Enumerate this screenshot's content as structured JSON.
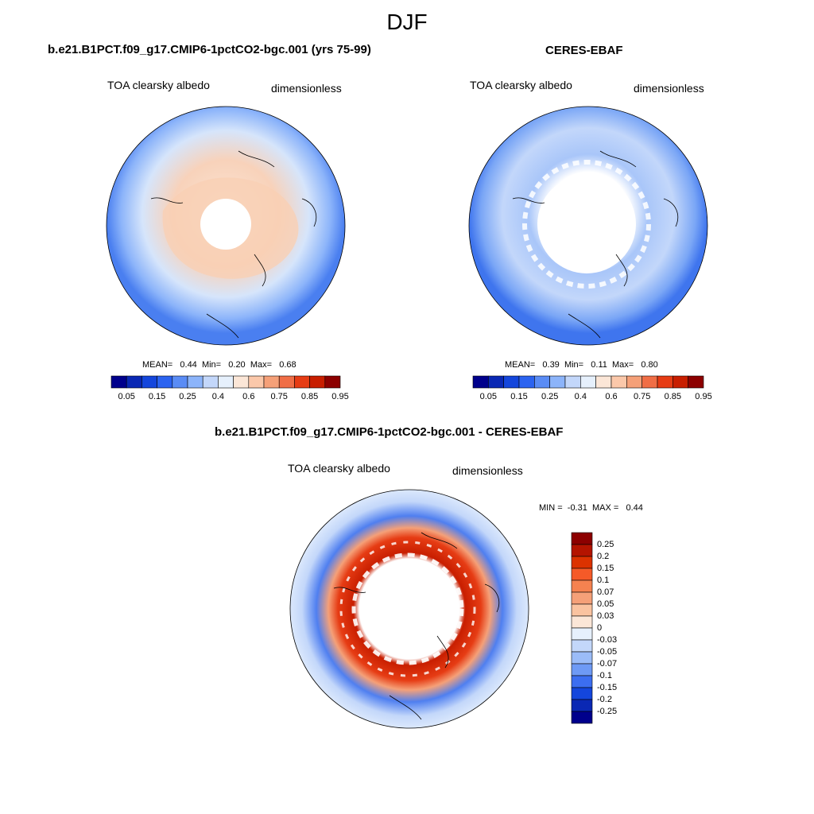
{
  "figure": {
    "season": "DJF"
  },
  "panels": {
    "model": {
      "title": "b.e21.B1PCT.f09_g17.CMIP6-1pctCO2-bgc.001 (yrs 75-99)",
      "variable": "TOA clearsky albedo",
      "units": "dimensionless",
      "stats": {
        "mean_label": "MEAN=",
        "mean": "0.44",
        "min_label": "Min=",
        "min": "0.20",
        "max_label": "Max=",
        "max": "0.68"
      }
    },
    "obs": {
      "title": "CERES-EBAF",
      "variable": "TOA clearsky albedo",
      "units": "dimensionless",
      "stats": {
        "mean_label": "MEAN=",
        "mean": "0.39",
        "min_label": "Min=",
        "min": "0.11",
        "max_label": "Max=",
        "max": "0.80"
      }
    },
    "diff": {
      "title": "b.e21.B1PCT.f09_g17.CMIP6-1pctCO2-bgc.001 - CERES-EBAF",
      "variable": "TOA clearsky albedo",
      "units": "dimensionless",
      "stats": {
        "min_label": "MIN =",
        "min": "-0.31",
        "max_label": "MAX =",
        "max": "0.44"
      }
    }
  },
  "colorbars": {
    "absolute": {
      "labels": [
        "0.05",
        "0.15",
        "0.25",
        "0.4",
        "0.6",
        "0.75",
        "0.85",
        "0.95"
      ],
      "colors": [
        "#00008c",
        "#0a28b4",
        "#1446dc",
        "#2b63f0",
        "#5a8cf5",
        "#8cb4fa",
        "#c3d7fa",
        "#e6f0fc",
        "#fbe6d7",
        "#fbc8aa",
        "#f5a078",
        "#f06e46",
        "#e63c14",
        "#c81e00",
        "#8c0000"
      ]
    },
    "difference": {
      "labels": [
        "0.25",
        "0.2",
        "0.15",
        "0.1",
        "0.07",
        "0.05",
        "0.03",
        "0",
        "-0.03",
        "-0.05",
        "-0.07",
        "-0.1",
        "-0.15",
        "-0.2",
        "-0.25"
      ],
      "colors": [
        "#8c0000",
        "#b41400",
        "#dc3200",
        "#f55a28",
        "#f58250",
        "#f5a078",
        "#fac3a0",
        "#fbe6d7",
        "#e6f0fc",
        "#c3d7fa",
        "#9bbcf8",
        "#6e9af5",
        "#3c6ef0",
        "#1446dc",
        "#0a28b4",
        "#00008c"
      ]
    }
  }
}
